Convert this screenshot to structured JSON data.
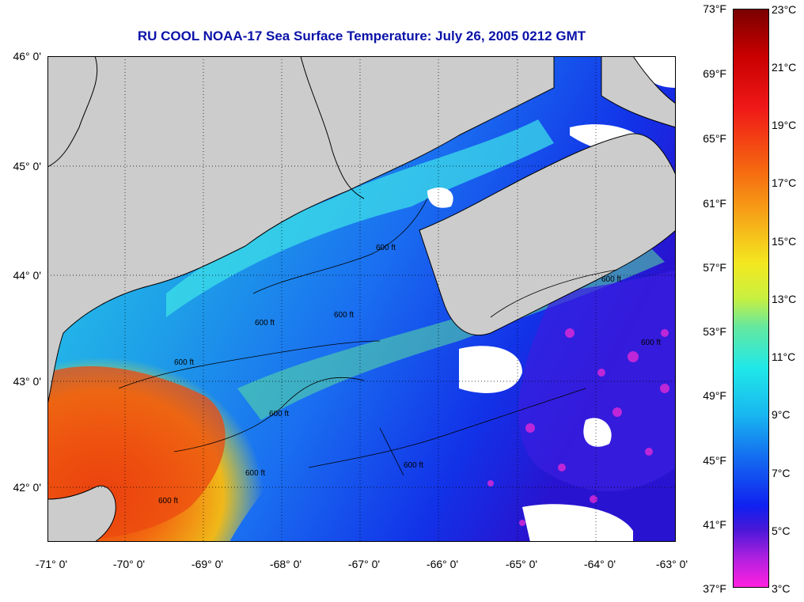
{
  "title": "RU COOL  NOAA-17  Sea Surface Temperature:  July 26, 2005 0212 GMT",
  "map": {
    "lat_labels": [
      "46° 0'",
      "45° 0'",
      "44° 0'",
      "43° 0'",
      "42° 0'"
    ],
    "lon_labels": [
      "-71° 0'",
      "-70° 0'",
      "-69° 0'",
      "-68° 0'",
      "-67° 0'",
      "-66° 0'",
      "-65° 0'",
      "-64° 0'",
      "-63° 0'"
    ],
    "contour_label": "600 ft",
    "colors": {
      "land": "#cccccc",
      "cloud": "#ffffff",
      "coast": "#000000"
    }
  },
  "colorbar": {
    "fahrenheit": [
      "73°F",
      "69°F",
      "65°F",
      "61°F",
      "57°F",
      "53°F",
      "49°F",
      "45°F",
      "41°F",
      "37°F"
    ],
    "celsius": [
      "23°C",
      "21°C",
      "19°C",
      "17°C",
      "15°C",
      "13°C",
      "11°C",
      "9°C",
      "7°C",
      "5°C",
      "3°C"
    ],
    "range_c": [
      3,
      23
    ]
  }
}
